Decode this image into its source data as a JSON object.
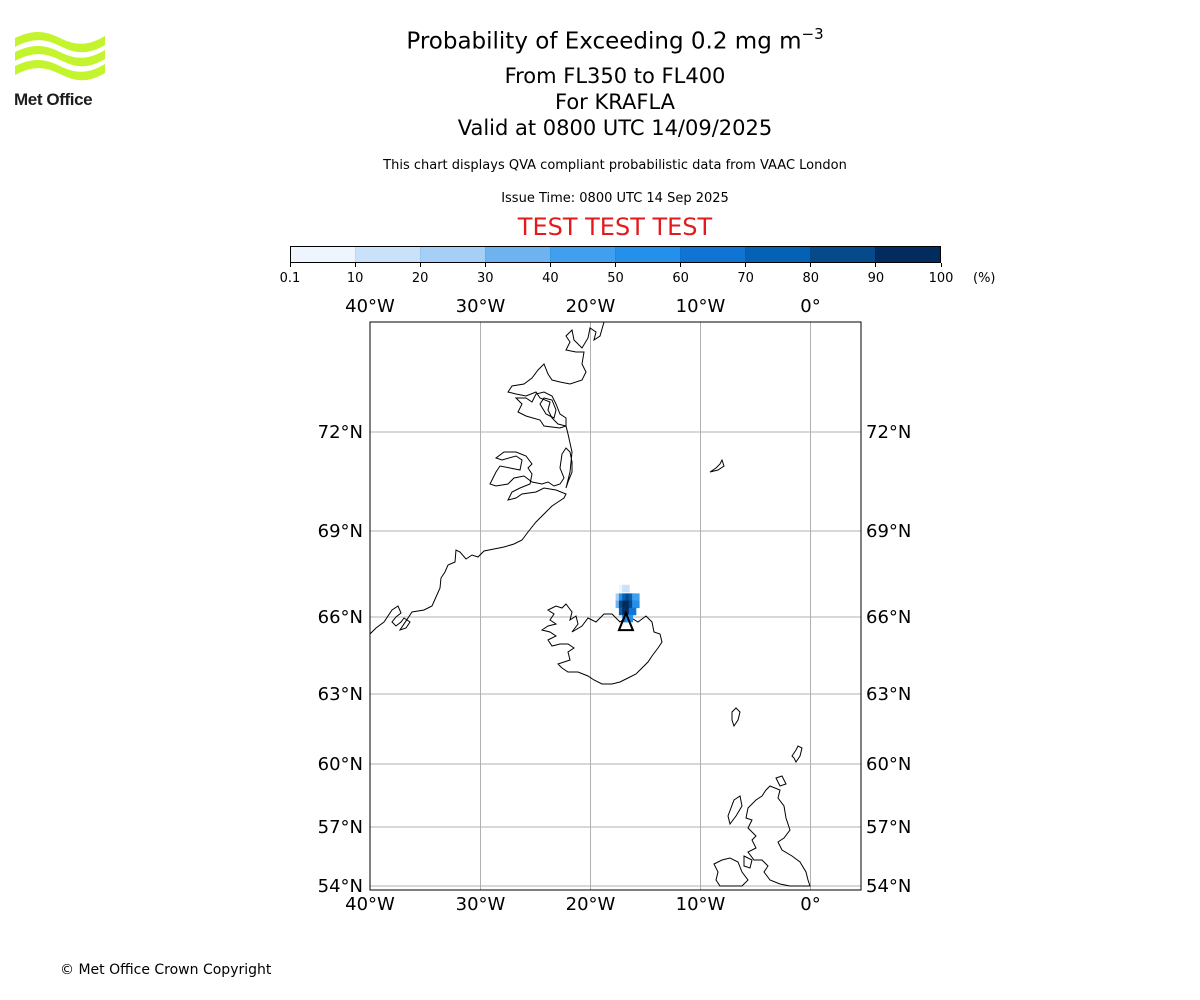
{
  "logo": {
    "text": "Met Office",
    "color": "#c4f42e"
  },
  "title": {
    "main_prefix": "Probability of Exceeding 0.2 mg m",
    "main_exponent": "−3",
    "line2": "From FL350 to FL400",
    "line3": "For KRAFLA",
    "line4": "Valid at 0800 UTC 14/09/2025"
  },
  "notes": {
    "description": "This chart displays QVA compliant probabilistic data from VAAC London",
    "issue_time": "Issue Time: 0800 UTC 14 Sep 2025"
  },
  "banner": {
    "text": "TEST TEST TEST",
    "color": "#e31a1c"
  },
  "colorbar": {
    "unit": "(%)",
    "bounds": [
      "0.1",
      "10",
      "20",
      "30",
      "40",
      "50",
      "60",
      "70",
      "80",
      "90",
      "100"
    ],
    "colors": [
      "#eef5fd",
      "#c9e2f9",
      "#a5cff5",
      "#6eb3f0",
      "#41a0ed",
      "#2490ea",
      "#0f74d4",
      "#0561b4",
      "#064a8c",
      "#032c5e"
    ]
  },
  "map": {
    "projection": "geostationary-like (lon -40 to 5, lat 54 to 75)",
    "lon_labels": [
      "40°W",
      "30°W",
      "20°W",
      "10°W",
      "0°"
    ],
    "lat_labels": [
      "72°N",
      "69°N",
      "66°N",
      "63°N",
      "60°N",
      "57°N",
      "54°N"
    ],
    "volcano_name": "KRAFLA",
    "grid_color": "#b0b0b0",
    "plume_cells": [
      {
        "lon": -17.1,
        "lat": 67.0,
        "prob": 5
      },
      {
        "lon": -16.8,
        "lat": 67.0,
        "prob": 15
      },
      {
        "lon": -17.4,
        "lat": 66.7,
        "prob": 25
      },
      {
        "lon": -17.1,
        "lat": 66.7,
        "prob": 55
      },
      {
        "lon": -16.8,
        "lat": 66.7,
        "prob": 75
      },
      {
        "lon": -16.5,
        "lat": 66.7,
        "prob": 85
      },
      {
        "lon": -16.2,
        "lat": 66.7,
        "prob": 70
      },
      {
        "lon": -15.9,
        "lat": 66.7,
        "prob": 45
      },
      {
        "lon": -17.4,
        "lat": 66.45,
        "prob": 35
      },
      {
        "lon": -17.1,
        "lat": 66.45,
        "prob": 85
      },
      {
        "lon": -16.8,
        "lat": 66.45,
        "prob": 95
      },
      {
        "lon": -16.5,
        "lat": 66.45,
        "prob": 95
      },
      {
        "lon": -16.2,
        "lat": 66.45,
        "prob": 80
      },
      {
        "lon": -15.9,
        "lat": 66.45,
        "prob": 55
      },
      {
        "lon": -17.1,
        "lat": 66.2,
        "prob": 75
      },
      {
        "lon": -16.8,
        "lat": 66.2,
        "prob": 92
      },
      {
        "lon": -16.5,
        "lat": 66.2,
        "prob": 90
      },
      {
        "lon": -16.2,
        "lat": 66.2,
        "prob": 60
      },
      {
        "lon": -16.8,
        "lat": 65.95,
        "prob": 65
      },
      {
        "lon": -16.5,
        "lat": 65.95,
        "prob": 50
      }
    ]
  },
  "copyright": "© Met Office Crown Copyright"
}
